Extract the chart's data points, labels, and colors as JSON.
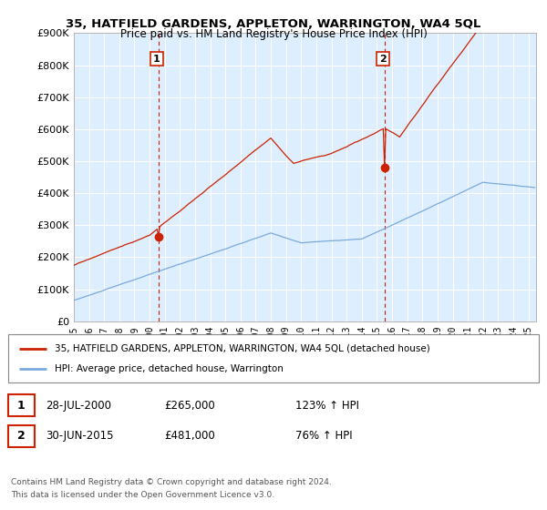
{
  "title": "35, HATFIELD GARDENS, APPLETON, WARRINGTON, WA4 5QL",
  "subtitle": "Price paid vs. HM Land Registry's House Price Index (HPI)",
  "sale1_date": 2000.57,
  "sale1_price": 265000,
  "sale1_label": "1",
  "sale1_date_str": "28-JUL-2000",
  "sale1_pct": "123% ↑ HPI",
  "sale2_date": 2015.5,
  "sale2_price": 481000,
  "sale2_label": "2",
  "sale2_date_str": "30-JUN-2015",
  "sale2_pct": "76% ↑ HPI",
  "red_line_color": "#cc2200",
  "blue_line_color": "#7aaadd",
  "bg_fill_color": "#ddeeff",
  "dashed_color": "#cc2200",
  "legend_label_red": "35, HATFIELD GARDENS, APPLETON, WARRINGTON, WA4 5QL (detached house)",
  "legend_label_blue": "HPI: Average price, detached house, Warrington",
  "footer1": "Contains HM Land Registry data © Crown copyright and database right 2024.",
  "footer2": "This data is licensed under the Open Government Licence v3.0.",
  "ylim": [
    0,
    900000
  ],
  "xlim_left": 1995.0,
  "xlim_right": 2025.5
}
